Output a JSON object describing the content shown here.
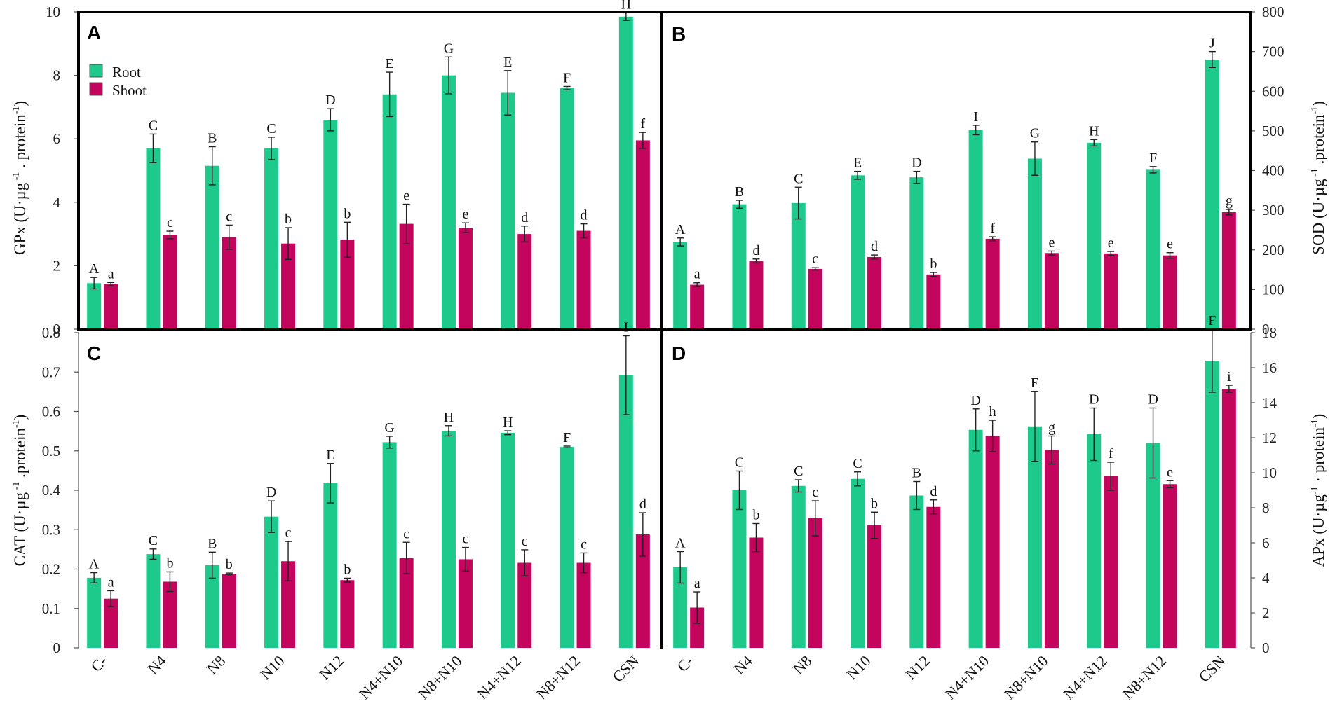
{
  "colors": {
    "root": "#1dca8c",
    "shoot": "#c3055e",
    "frame": "#000000",
    "axis": "#555555"
  },
  "legend": [
    {
      "name": "Root",
      "color": "#1dca8c"
    },
    {
      "name": "Shoot",
      "color": "#c3055e"
    }
  ],
  "chart_data": [
    {
      "panel": "A",
      "type": "bar",
      "ylabel_main": "GPx (U·µg",
      "ylabel_sup1": " -1",
      "ylabel_mid": " . protein",
      "ylabel_sup2": "-1",
      "ylabel_end": ")",
      "ylim": [
        0,
        10
      ],
      "yticks": [
        0,
        2,
        4,
        6,
        8,
        10
      ],
      "axis_side": "left",
      "categories": [
        "C-",
        "N4",
        "N8",
        "N10",
        "N12",
        "N4+N10",
        "N8+N10",
        "N4+N12",
        "N8+N12",
        "CSN"
      ],
      "series": [
        {
          "name": "Root",
          "values": [
            1.45,
            5.7,
            5.15,
            5.7,
            6.6,
            7.4,
            8.0,
            7.45,
            7.6,
            9.85
          ],
          "errors": [
            0.18,
            0.45,
            0.6,
            0.35,
            0.35,
            0.7,
            0.58,
            0.7,
            0.05,
            0.12
          ],
          "labels": [
            "A",
            "C",
            "B",
            "C",
            "D",
            "E",
            "G",
            "E",
            "F",
            "H"
          ]
        },
        {
          "name": "Shoot",
          "values": [
            1.42,
            2.97,
            2.9,
            2.7,
            2.82,
            3.32,
            3.2,
            3.0,
            3.1,
            5.95
          ],
          "errors": [
            0.05,
            0.12,
            0.38,
            0.5,
            0.55,
            0.62,
            0.15,
            0.25,
            0.22,
            0.25
          ],
          "labels": [
            "a",
            "c",
            "c",
            "b",
            "b",
            "e",
            "e",
            "d",
            "d",
            "f"
          ]
        }
      ]
    },
    {
      "panel": "B",
      "type": "bar",
      "ylabel_main": "SOD (U·µg",
      "ylabel_sup1": " -1",
      "ylabel_mid": " .protein",
      "ylabel_sup2": "-1",
      "ylabel_end": ")",
      "ylim": [
        0,
        800
      ],
      "yticks": [
        0,
        100,
        200,
        300,
        400,
        500,
        600,
        700,
        800
      ],
      "axis_side": "right",
      "categories": [
        "C-",
        "N4",
        "N8",
        "N10",
        "N12",
        "N4+N10",
        "N8+N10",
        "N4+N12",
        "N8+N12",
        "CSN"
      ],
      "series": [
        {
          "name": "Root",
          "values": [
            220,
            315,
            318,
            388,
            383,
            502,
            430,
            470,
            402,
            680
          ],
          "errors": [
            10,
            10,
            40,
            10,
            15,
            12,
            42,
            8,
            8,
            20
          ],
          "labels": [
            "A",
            "B",
            "C",
            "E",
            "D",
            "I",
            "G",
            "H",
            "F",
            "J"
          ]
        },
        {
          "name": "Shoot",
          "values": [
            112,
            172,
            152,
            182,
            138,
            228,
            192,
            191,
            186,
            295
          ],
          "errors": [
            5,
            5,
            3,
            5,
            5,
            5,
            5,
            5,
            7,
            7
          ],
          "labels": [
            "a",
            "d",
            "c",
            "d",
            "b",
            "f",
            "e",
            "e",
            "e",
            "g"
          ]
        }
      ]
    },
    {
      "panel": "C",
      "type": "bar",
      "ylabel_main": "CAT (U·µg",
      "ylabel_sup1": " -1",
      "ylabel_mid": " .protein",
      "ylabel_sup2": "-1",
      "ylabel_end": ")",
      "ylim": [
        0,
        0.8
      ],
      "yticks": [
        0,
        0.1,
        0.2,
        0.3,
        0.4,
        0.5,
        0.6,
        0.7,
        0.8
      ],
      "axis_side": "left",
      "categories": [
        "C-",
        "N4",
        "N8",
        "N10",
        "N12",
        "N4+N10",
        "N8+N10",
        "N4+N12",
        "N8+N12",
        "CSN"
      ],
      "series": [
        {
          "name": "Root",
          "values": [
            0.178,
            0.238,
            0.21,
            0.333,
            0.418,
            0.522,
            0.551,
            0.546,
            0.51,
            0.692
          ],
          "errors": [
            0.013,
            0.013,
            0.033,
            0.04,
            0.05,
            0.015,
            0.013,
            0.005,
            0.002,
            0.1
          ],
          "labels": [
            "A",
            "C",
            "B",
            "D",
            "E",
            "G",
            "H",
            "H",
            "F",
            "I"
          ]
        },
        {
          "name": "Shoot",
          "values": [
            0.125,
            0.168,
            0.188,
            0.22,
            0.172,
            0.228,
            0.225,
            0.216,
            0.216,
            0.288
          ],
          "errors": [
            0.02,
            0.025,
            0.002,
            0.05,
            0.005,
            0.04,
            0.03,
            0.033,
            0.025,
            0.055
          ],
          "labels": [
            "a",
            "b",
            "b",
            "c",
            "b",
            "c",
            "c",
            "c",
            "c",
            "d"
          ]
        }
      ]
    },
    {
      "panel": "D",
      "type": "bar",
      "ylabel_main": "APx (U·µg",
      "ylabel_sup1": "-1",
      "ylabel_mid": " · protein",
      "ylabel_sup2": "-1",
      "ylabel_end": ")",
      "ylim": [
        0,
        18
      ],
      "yticks": [
        0,
        2,
        4,
        6,
        8,
        10,
        12,
        14,
        16,
        18
      ],
      "axis_side": "right",
      "categories": [
        "C-",
        "N4",
        "N8",
        "N10",
        "N12",
        "N4+N10",
        "N8+N10",
        "N4+N12",
        "N8+N12",
        "CSN"
      ],
      "series": [
        {
          "name": "Root",
          "values": [
            4.6,
            9.0,
            9.25,
            9.65,
            8.7,
            12.45,
            12.65,
            12.2,
            11.7,
            16.4
          ],
          "errors": [
            0.9,
            1.1,
            0.35,
            0.4,
            0.8,
            1.2,
            2.0,
            1.5,
            2.0,
            1.8
          ],
          "labels": [
            "A",
            "C",
            "C",
            "C",
            "B",
            "D",
            "E",
            "D",
            "D",
            "F"
          ]
        },
        {
          "name": "Shoot",
          "values": [
            2.3,
            6.3,
            7.4,
            7.0,
            8.05,
            12.1,
            11.3,
            9.8,
            9.35,
            14.8
          ],
          "errors": [
            0.9,
            0.8,
            1.0,
            0.75,
            0.4,
            0.9,
            0.8,
            0.8,
            0.2,
            0.2
          ],
          "labels": [
            "a",
            "b",
            "c",
            "b",
            "d",
            "h",
            "g",
            "f",
            "e",
            "i"
          ]
        }
      ]
    }
  ]
}
